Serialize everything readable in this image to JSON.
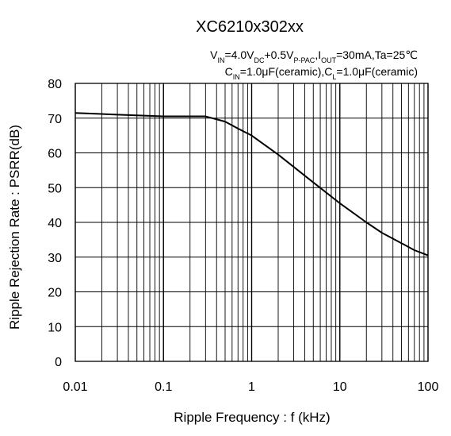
{
  "chart_data": {
    "type": "line",
    "title": "XC6210x302xx",
    "conditions": {
      "line1": [
        {
          "text": "V",
          "sub": false
        },
        {
          "text": "IN",
          "sub": true
        },
        {
          "text": "=4.0V",
          "sub": false
        },
        {
          "text": "DC",
          "sub": true
        },
        {
          "text": "+0.5V",
          "sub": false
        },
        {
          "text": "P-PAC",
          "sub": true
        },
        {
          "text": ",I",
          "sub": false
        },
        {
          "text": "OUT",
          "sub": true
        },
        {
          "text": "=30mA,Ta=25℃",
          "sub": false
        }
      ],
      "line2": [
        {
          "text": "C",
          "sub": false
        },
        {
          "text": "IN",
          "sub": true
        },
        {
          "text": "=1.0μF(ceramic),C",
          "sub": false
        },
        {
          "text": "L",
          "sub": true
        },
        {
          "text": "=1.0μF(ceramic)",
          "sub": false
        }
      ]
    },
    "xlabel": "Ripple Frequency : f (kHz)",
    "ylabel": "Ripple Rejection Rate : PSRR(dB)",
    "x_scale": "log",
    "xlim": [
      0.01,
      100
    ],
    "ylim": [
      0,
      80
    ],
    "x_ticks": [
      0.01,
      0.1,
      1,
      10,
      100
    ],
    "x_tick_labels": [
      "0.01",
      "0.1",
      "1",
      "10",
      "100"
    ],
    "y_ticks": [
      0,
      10,
      20,
      30,
      40,
      50,
      60,
      70,
      80
    ],
    "y_tick_labels": [
      "0",
      "10",
      "20",
      "30",
      "40",
      "50",
      "60",
      "70",
      "80"
    ],
    "grid": true,
    "series": [
      {
        "color": "#000000",
        "x": [
          0.01,
          0.03,
          0.1,
          0.3,
          0.5,
          0.7,
          1,
          2,
          5,
          10,
          20,
          30,
          50,
          70,
          100
        ],
        "y": [
          71.5,
          71.0,
          70.5,
          70.5,
          69.0,
          67.0,
          65.0,
          59.5,
          51.5,
          45.5,
          40.0,
          37.0,
          34.0,
          32.0,
          30.5
        ]
      }
    ]
  }
}
